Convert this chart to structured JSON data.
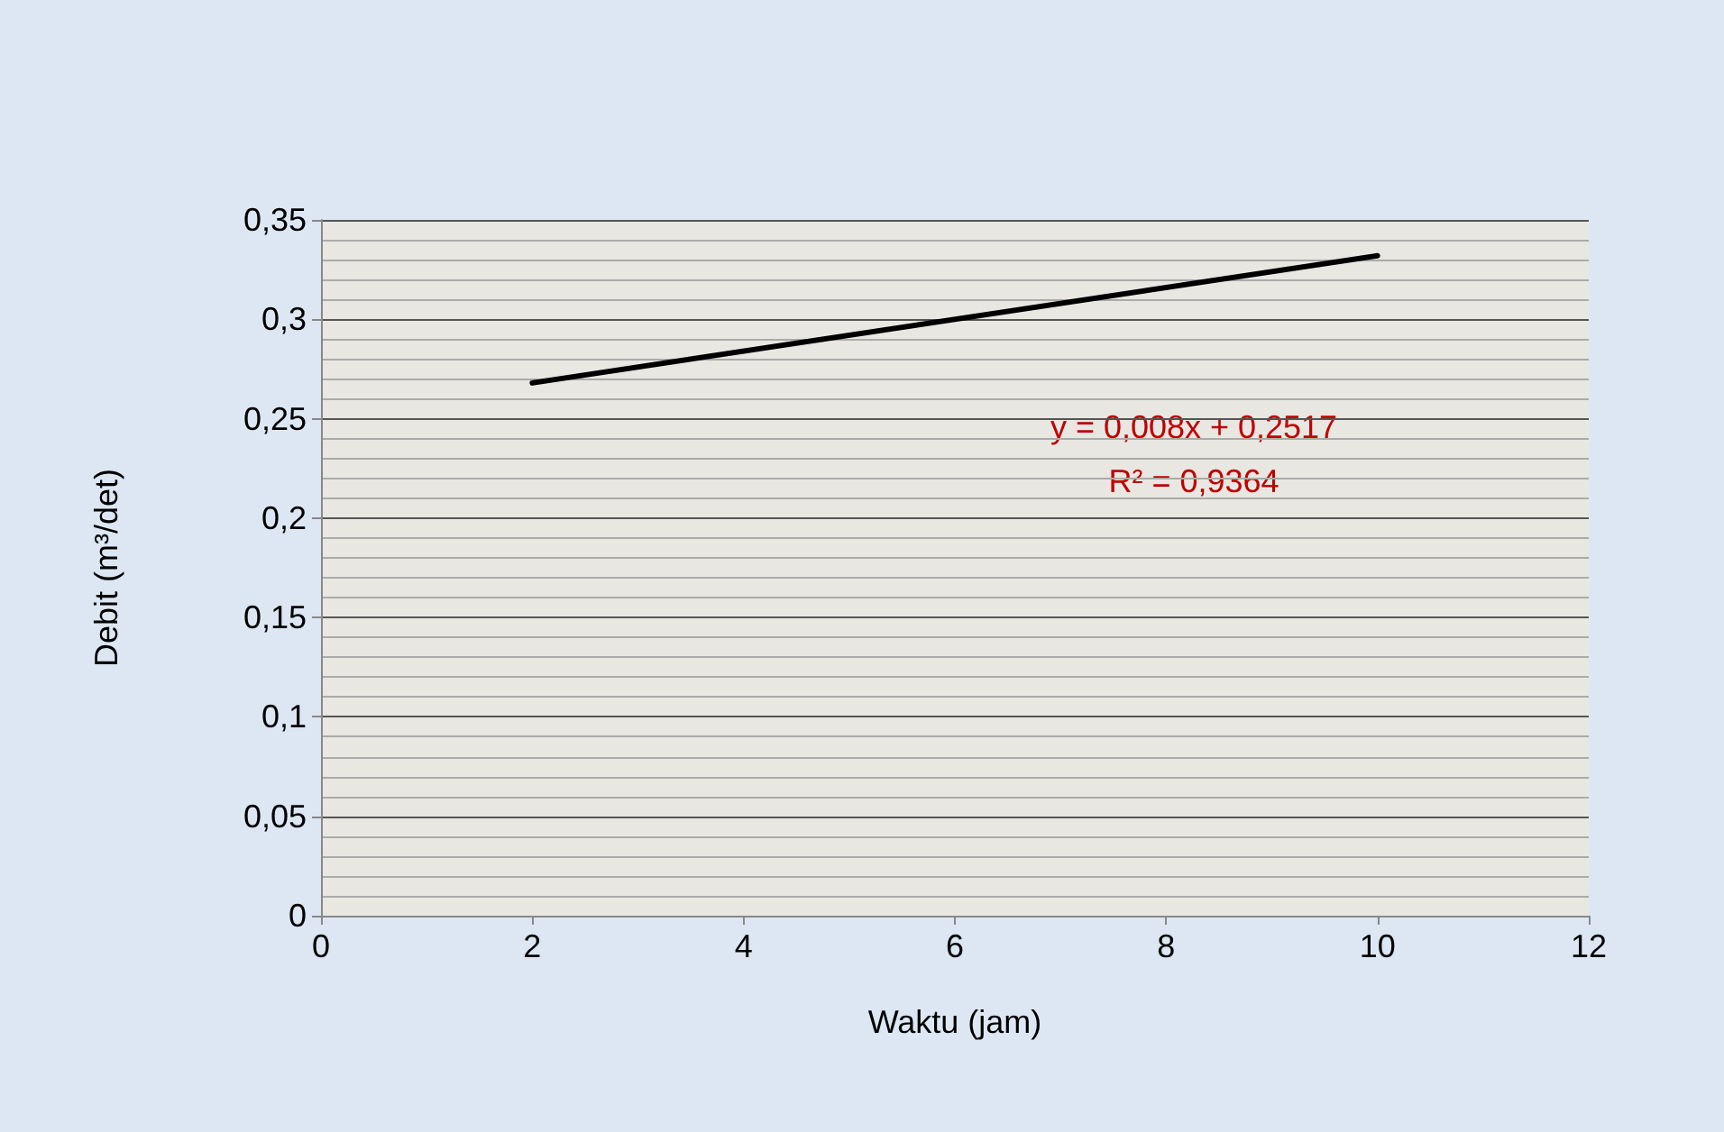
{
  "chart_data": {
    "type": "line",
    "xlabel": "Waktu (jam)",
    "ylabel": "Debit (m³/det)",
    "series": [
      {
        "color": "#000000",
        "x": [
          2,
          10
        ],
        "values": [
          0.268,
          0.332
        ]
      }
    ],
    "xlim": [
      0,
      12
    ],
    "xticks": [
      0,
      2,
      4,
      6,
      8,
      10,
      12
    ],
    "ylim": [
      0,
      0.35
    ],
    "yticks": [
      0,
      {
        "value": 0.05,
        "label": "0,05"
      },
      {
        "value": 0.1,
        "label": "0,1"
      },
      {
        "value": 0.15,
        "label": "0,15"
      },
      {
        "value": 0.2,
        "label": "0,2"
      },
      {
        "value": 0.25,
        "label": "0,25"
      },
      {
        "value": 0.3,
        "label": "0,3"
      },
      {
        "value": 0.35,
        "label": "0,35"
      }
    ],
    "annotations": [
      "y = 0,008x + 0,2517",
      "R² = 0,9364"
    ],
    "grid": "y",
    "marker": "none",
    "line_style": "solid"
  }
}
